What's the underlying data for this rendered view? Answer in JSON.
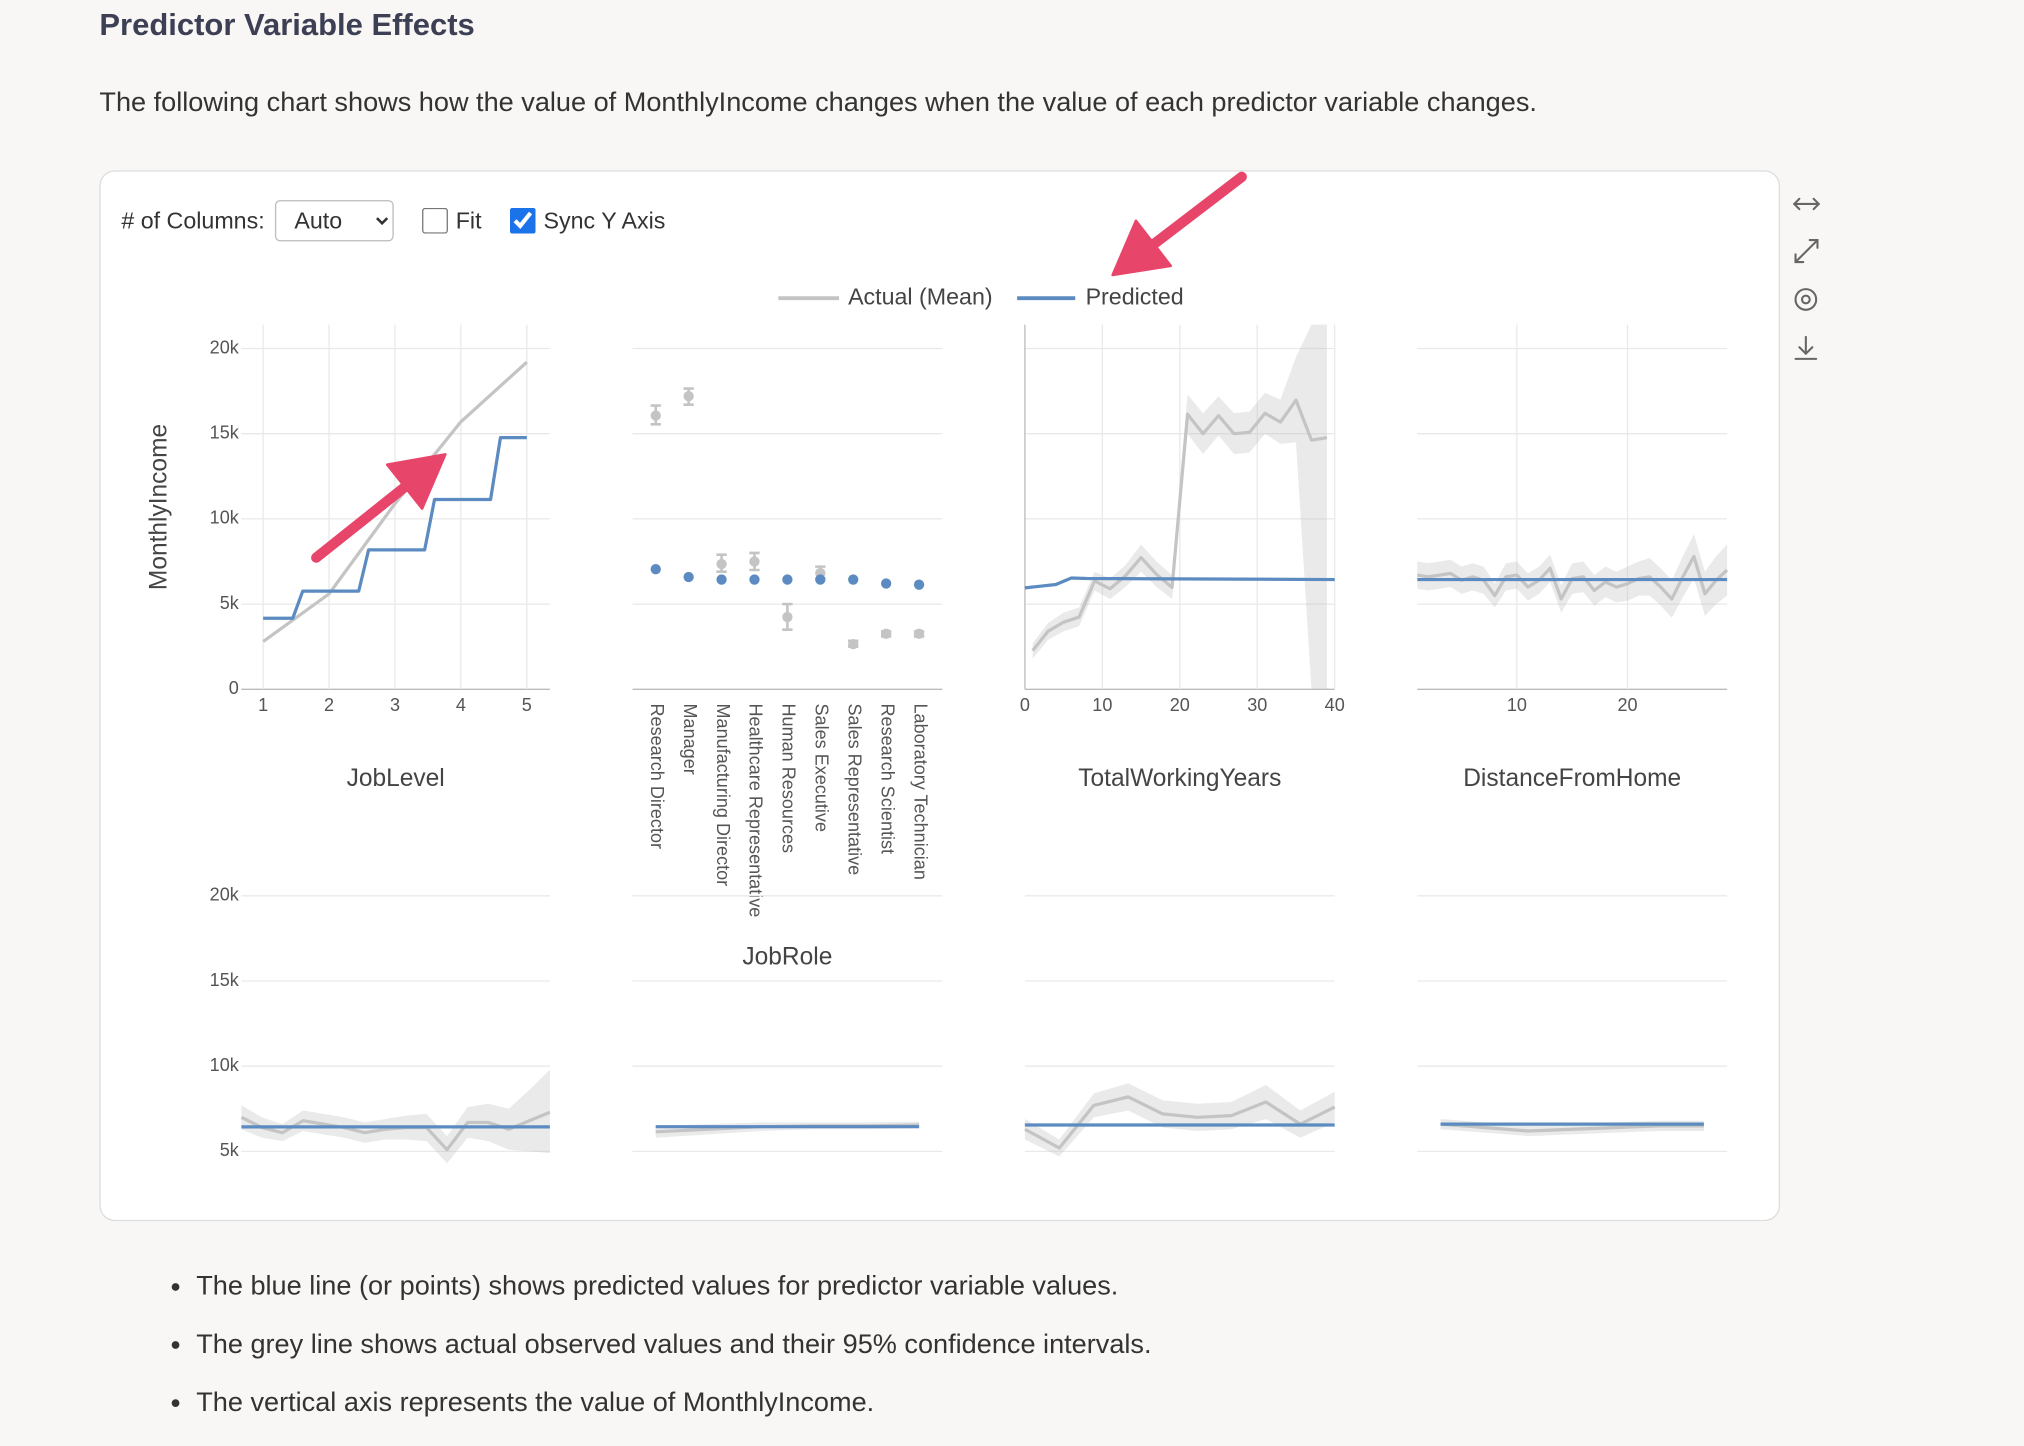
{
  "heading": "Predictor Variable Effects",
  "description": "The following chart shows how the value of MonthlyIncome changes when the value of each predictor variable changes.",
  "controls": {
    "columns_label": "# of Columns:",
    "columns_value": "Auto",
    "fit": {
      "label": "Fit",
      "checked": false
    },
    "sync": {
      "label": "Sync Y Axis",
      "checked": true
    }
  },
  "legend": [
    {
      "name": "Actual (Mean)",
      "color": "#c4c4c4"
    },
    {
      "name": "Predicted",
      "color": "#5b8bc0"
    }
  ],
  "y_axis": {
    "title": "MonthlyIncome",
    "ylim": [
      0,
      21400
    ],
    "yticks": [
      0,
      {
        "value": 5000,
        "label": "5k"
      },
      {
        "value": 10000,
        "label": "10k"
      },
      {
        "value": 15000,
        "label": "15k"
      },
      {
        "value": 20000,
        "label": "20k"
      }
    ],
    "grid": true
  },
  "chart_data": [
    {
      "type": "line",
      "title": "JobLevel",
      "x": [
        1,
        2,
        3,
        4,
        5
      ],
      "xlim": [
        0.67,
        5.35
      ],
      "xticks": [
        1,
        2,
        3,
        4,
        5
      ],
      "series": [
        {
          "values": [
            2800,
            5600,
            10900,
            15700,
            19200
          ]
        },
        {
          "x": [
            1,
            1.45,
            1.6,
            2.45,
            2.6,
            3.45,
            3.6,
            4.45,
            4.6,
            5
          ],
          "values": [
            4170,
            4170,
            5760,
            5760,
            8180,
            8180,
            11140,
            11140,
            14770,
            14770
          ]
        }
      ]
    },
    {
      "type": "dot",
      "title": "JobRole",
      "categories": [
        "Research Director",
        "Manager",
        "Manufacturing Director",
        "Healthcare Representative",
        "Human Resources",
        "Sales Executive",
        "Sales Representative",
        "Research Scientist",
        "Laboratory Technician"
      ],
      "series": [
        {
          "values": [
            16060,
            17200,
            7350,
            7500,
            4240,
            6820,
            2650,
            3260,
            3260
          ],
          "lower": [
            15550,
            16700,
            6900,
            7000,
            3500,
            6500,
            2500,
            3100,
            3100
          ],
          "upper": [
            16650,
            17650,
            7900,
            8000,
            5000,
            7200,
            2850,
            3400,
            3400
          ]
        },
        {
          "values": [
            7050,
            6590,
            6440,
            6440,
            6440,
            6440,
            6440,
            6210,
            6140
          ]
        }
      ]
    },
    {
      "type": "line",
      "title": "TotalWorkingYears",
      "x": [
        1,
        3,
        5,
        7,
        9,
        11,
        13,
        15,
        17,
        19,
        21,
        23,
        25,
        27,
        29,
        31,
        33,
        35,
        37,
        39
      ],
      "xlim": [
        0,
        40
      ],
      "xticks": [
        0,
        10,
        20,
        30,
        40
      ],
      "series": [
        {
          "values": [
            2270,
            3410,
            3940,
            4240,
            6360,
            5900,
            6670,
            7730,
            6740,
            5980,
            16140,
            15000,
            16060,
            15000,
            15080,
            16200,
            15680,
            16970,
            14620,
            14770
          ],
          "lower": [
            1800,
            2900,
            3400,
            3700,
            5800,
            5300,
            6000,
            6900,
            6000,
            5300,
            15000,
            13800,
            14900,
            13800,
            13900,
            15000,
            14400,
            14500,
            0,
            0
          ],
          "upper": [
            2700,
            3900,
            4500,
            4800,
            6900,
            6500,
            7300,
            8500,
            7500,
            6700,
            17300,
            16200,
            17200,
            16200,
            16300,
            17400,
            17000,
            19500,
            21400,
            21400
          ]
        },
        {
          "x": [
            0,
            2,
            4,
            6,
            8,
            40
          ],
          "values": [
            5950,
            6050,
            6150,
            6530,
            6500,
            6440
          ]
        }
      ]
    },
    {
      "type": "line",
      "title": "DistanceFromHome",
      "x": [
        1,
        2,
        3,
        4,
        5,
        6,
        7,
        8,
        9,
        10,
        11,
        12,
        13,
        14,
        15,
        16,
        17,
        18,
        19,
        20,
        21,
        22,
        23,
        24,
        25,
        26,
        27,
        28,
        29
      ],
      "xlim": [
        1,
        29
      ],
      "xticks": [
        10,
        20
      ],
      "series": [
        {
          "values": [
            6700,
            6600,
            6700,
            6800,
            6400,
            6600,
            6400,
            5500,
            6600,
            6700,
            6000,
            6400,
            7100,
            5300,
            6500,
            6600,
            5800,
            6300,
            6000,
            6200,
            6500,
            6600,
            6000,
            5300,
            6600,
            7800,
            5600,
            6400,
            7000
          ],
          "lower": [
            5900,
            5800,
            5900,
            6000,
            5600,
            5800,
            5600,
            4800,
            5800,
            5900,
            5200,
            5600,
            6300,
            4500,
            5600,
            5700,
            4900,
            5400,
            5100,
            5200,
            5500,
            5500,
            4900,
            4200,
            5400,
            6500,
            4300,
            5000,
            5500
          ],
          "upper": [
            7500,
            7400,
            7500,
            7600,
            7200,
            7400,
            7200,
            6200,
            7400,
            7500,
            6800,
            7200,
            7900,
            6100,
            7400,
            7500,
            6700,
            7200,
            6900,
            7200,
            7500,
            7700,
            7100,
            6400,
            7800,
            9100,
            6900,
            7800,
            8500
          ]
        },
        {
          "x": [
            1,
            29
          ],
          "values": [
            6440,
            6440
          ]
        }
      ]
    },
    {
      "type": "line",
      "x": [
        1,
        2,
        3,
        4,
        5,
        6,
        7,
        8,
        9,
        10,
        11,
        12,
        13,
        14,
        15,
        16
      ],
      "xlim": [
        1,
        16
      ],
      "series": [
        {
          "values": [
            7000,
            6400,
            6100,
            6800,
            6600,
            6400,
            6100,
            6300,
            6400,
            6400,
            5100,
            6700,
            6700,
            6300,
            6800,
            7300
          ],
          "lower": [
            6300,
            5800,
            5600,
            6200,
            6000,
            5800,
            5500,
            5700,
            5700,
            5600,
            4300,
            5800,
            5600,
            5100,
            5000,
            4900
          ],
          "upper": [
            7700,
            7000,
            6600,
            7400,
            7200,
            7000,
            6700,
            6900,
            7100,
            7200,
            5900,
            7600,
            7800,
            7500,
            8600,
            9800
          ]
        },
        {
          "x": [
            1,
            16
          ],
          "values": [
            6440,
            6440
          ]
        }
      ]
    },
    {
      "type": "line",
      "x": [
        1,
        2,
        3,
        4,
        5,
        6
      ],
      "xlim": [
        0.56,
        6.44
      ],
      "series": [
        {
          "values": [
            6150,
            6300,
            6450,
            6500,
            6500,
            6550
          ],
          "lower": [
            5800,
            6000,
            6200,
            6300,
            6300,
            6350
          ],
          "upper": [
            6500,
            6600,
            6700,
            6700,
            6700,
            6750
          ]
        },
        {
          "x": [
            1,
            6
          ],
          "values": [
            6450,
            6450
          ]
        }
      ]
    },
    {
      "type": "line",
      "x": [
        1,
        2,
        3,
        4,
        5,
        6,
        7,
        8,
        9,
        10
      ],
      "xlim": [
        1,
        10
      ],
      "series": [
        {
          "values": [
            6300,
            5200,
            7700,
            8200,
            7200,
            7000,
            7100,
            7900,
            6600,
            7600
          ],
          "lower": [
            5700,
            4700,
            7000,
            7400,
            6400,
            6200,
            6300,
            6900,
            5800,
            6700
          ],
          "upper": [
            6900,
            5700,
            8400,
            9000,
            8000,
            7800,
            7900,
            8900,
            7400,
            8500
          ]
        },
        {
          "x": [
            1,
            10
          ],
          "values": [
            6550,
            6550
          ]
        }
      ]
    },
    {
      "type": "line",
      "x": [
        1,
        2,
        3,
        4,
        5,
        6,
        7
      ],
      "xlim": [
        0.47,
        7.53
      ],
      "series": [
        {
          "values": [
            6600,
            6400,
            6200,
            6300,
            6400,
            6500,
            6500
          ],
          "lower": [
            6300,
            6100,
            5900,
            6000,
            6100,
            6200,
            6200
          ],
          "upper": [
            6900,
            6700,
            6500,
            6600,
            6700,
            6800,
            6800
          ]
        },
        {
          "x": [
            1,
            7
          ],
          "values": [
            6600,
            6600
          ]
        }
      ]
    }
  ],
  "bullets": [
    "The blue line (or points) shows predicted values for predictor variable values.",
    "The grey line shows actual observed values and their 95% confidence intervals.",
    "The vertical axis represents the value of MonthlyIncome."
  ]
}
